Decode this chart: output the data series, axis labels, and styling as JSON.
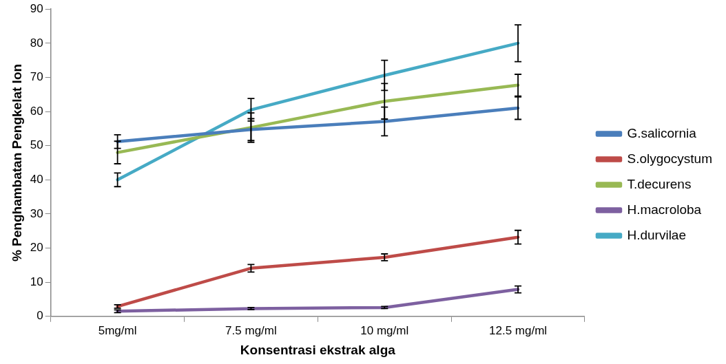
{
  "chart_data": {
    "type": "line",
    "xlabel": "Konsentrasi ekstrak alga",
    "ylabel": "% Penghambatan Pengkelat Ion",
    "categories": [
      "5mg/ml",
      "7.5 mg/ml",
      "10 mg/ml",
      "12.5 mg/ml"
    ],
    "ylim": [
      0,
      90
    ],
    "yticks": [
      0,
      10,
      20,
      30,
      40,
      50,
      60,
      70,
      80,
      90
    ],
    "grid": false,
    "legend": "right",
    "line_style": "solid",
    "series": [
      {
        "name": "G.salicornia",
        "color": "#4a7ebb",
        "values": [
          51.2,
          54.7,
          57.1,
          61.0
        ],
        "errors": [
          2,
          3.2,
          4.2,
          3.3
        ]
      },
      {
        "name": "S.olygocystum",
        "color": "#be4b48",
        "values": [
          2.9,
          14.1,
          17.3,
          23.2
        ],
        "errors": [
          0.5,
          1.1,
          1,
          2
        ]
      },
      {
        "name": "T.decurens",
        "color": "#98b954",
        "values": [
          48,
          55.3,
          63,
          67.7
        ],
        "errors": [
          3.3,
          4.3,
          5.2,
          3.2
        ]
      },
      {
        "name": "H.macroloba",
        "color": "#7d60a0",
        "values": [
          1.5,
          2.3,
          2.6,
          7.9
        ],
        "errors": [
          0.4,
          0.3,
          0.3,
          1
        ]
      },
      {
        "name": "H.durvilae",
        "color": "#46aac5",
        "values": [
          40,
          60.5,
          70.6,
          80
        ],
        "errors": [
          2,
          3.3,
          4.4,
          5.4
        ]
      }
    ]
  }
}
